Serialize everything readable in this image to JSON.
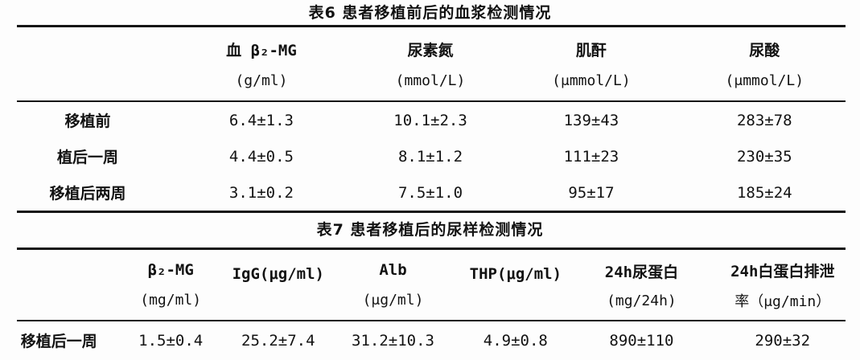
{
  "page": {
    "background": "#fdfdfd",
    "text_color": "#121212",
    "rule_color": "#151515"
  },
  "table6": {
    "title": "表6 患者移植前后的血浆检测情况",
    "columns": [
      {
        "name": "血 β₂-MG",
        "unit": "(g/ml)"
      },
      {
        "name": "尿素氮",
        "unit": "(mmol/L)"
      },
      {
        "name": "肌酐",
        "unit": "(μmmol/L)"
      },
      {
        "name": "尿酸",
        "unit": "(μmmol/L)"
      }
    ],
    "rows": [
      {
        "label": "移植前",
        "values": [
          "6.4±1.3",
          "10.1±2.3",
          "139±43",
          "283±78"
        ]
      },
      {
        "label": "植后一周",
        "values": [
          "4.4±0.5",
          "8.1±1.2",
          "111±23",
          "230±35"
        ]
      },
      {
        "label": "移植后两周",
        "values": [
          "3.1±0.2",
          "7.5±1.0",
          "95±17",
          "185±24"
        ]
      }
    ]
  },
  "table7": {
    "title": "表7 患者移植后的尿样检测情况",
    "columns": [
      {
        "name": "β₂-MG",
        "unit": "(mg/ml)"
      },
      {
        "name": "IgG(μg/ml)",
        "unit": ""
      },
      {
        "name": "Alb",
        "unit": "(μg/ml)"
      },
      {
        "name": "THP(μg/ml)",
        "unit": ""
      },
      {
        "name": "24h尿蛋白",
        "unit": "(mg/24h)"
      },
      {
        "name": "24h白蛋白排泄",
        "unit": "率（μg/min）"
      }
    ],
    "rows": [
      {
        "label": "移植后一周",
        "values": [
          "1.5±0.4",
          "25.2±7.4",
          "31.2±10.3",
          "4.9±0.8",
          "890±110",
          "290±32"
        ]
      }
    ]
  }
}
